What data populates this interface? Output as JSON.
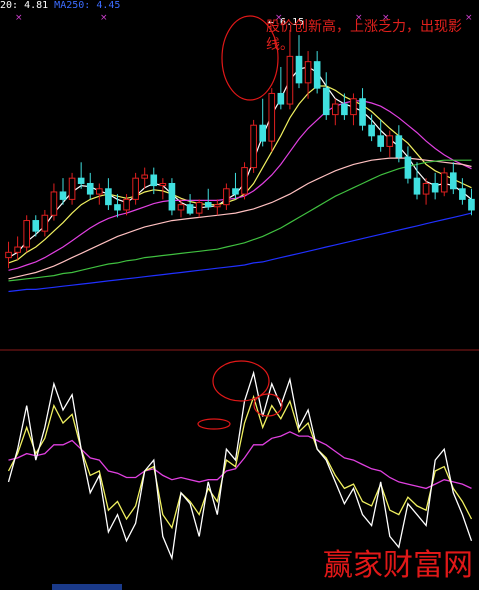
{
  "header": {
    "ma20_label": "20: 4.81",
    "ma250_label": "MA250: 4.45"
  },
  "annotation": {
    "text": "股价创新高，上涨乏力，出现影线。",
    "peak_label": "6.15"
  },
  "watermark": "赢家财富网",
  "colors": {
    "background": "#000000",
    "up_candle": "#e02020",
    "down_candle": "#40e0e0",
    "ma_white": "#ffffff",
    "ma_yellow": "#f0f060",
    "ma_magenta": "#e040e0",
    "ma_green": "#40c040",
    "ma_pink": "#ffc0c0",
    "ma_blue": "#2030ff",
    "circle": "#e01818"
  },
  "chart_data": [
    {
      "type": "candlestick",
      "title": "",
      "ylim": [
        3.6,
        6.3
      ],
      "candles": [
        [
          4.0,
          4.15,
          3.9,
          4.05
        ],
        [
          4.05,
          4.2,
          3.98,
          4.1
        ],
        [
          4.1,
          4.4,
          4.05,
          4.35
        ],
        [
          4.35,
          4.4,
          4.2,
          4.25
        ],
        [
          4.25,
          4.45,
          4.2,
          4.4
        ],
        [
          4.4,
          4.7,
          4.35,
          4.62
        ],
        [
          4.62,
          4.75,
          4.5,
          4.55
        ],
        [
          4.55,
          4.8,
          4.5,
          4.75
        ],
        [
          4.75,
          4.9,
          4.65,
          4.7
        ],
        [
          4.7,
          4.8,
          4.55,
          4.6
        ],
        [
          4.6,
          4.7,
          4.5,
          4.65
        ],
        [
          4.65,
          4.75,
          4.45,
          4.5
        ],
        [
          4.5,
          4.6,
          4.38,
          4.45
        ],
        [
          4.45,
          4.6,
          4.4,
          4.55
        ],
        [
          4.55,
          4.8,
          4.5,
          4.75
        ],
        [
          4.75,
          4.85,
          4.65,
          4.78
        ],
        [
          4.78,
          4.85,
          4.6,
          4.68
        ],
        [
          4.68,
          4.75,
          4.55,
          4.7
        ],
        [
          4.7,
          4.75,
          4.4,
          4.45
        ],
        [
          4.45,
          4.55,
          4.38,
          4.5
        ],
        [
          4.5,
          4.6,
          4.4,
          4.42
        ],
        [
          4.42,
          4.55,
          4.38,
          4.52
        ],
        [
          4.52,
          4.65,
          4.45,
          4.48
        ],
        [
          4.48,
          4.55,
          4.4,
          4.5
        ],
        [
          4.5,
          4.7,
          4.45,
          4.65
        ],
        [
          4.65,
          4.8,
          4.55,
          4.6
        ],
        [
          4.6,
          4.9,
          4.55,
          4.85
        ],
        [
          4.85,
          5.3,
          4.8,
          5.25
        ],
        [
          5.25,
          5.5,
          5.05,
          5.1
        ],
        [
          5.1,
          5.6,
          5.0,
          5.55
        ],
        [
          5.55,
          5.8,
          5.4,
          5.45
        ],
        [
          5.45,
          6.15,
          5.4,
          5.9
        ],
        [
          5.9,
          6.1,
          5.6,
          5.65
        ],
        [
          5.65,
          5.95,
          5.5,
          5.85
        ],
        [
          5.85,
          5.95,
          5.55,
          5.6
        ],
        [
          5.6,
          5.75,
          5.3,
          5.35
        ],
        [
          5.35,
          5.5,
          5.25,
          5.45
        ],
        [
          5.45,
          5.55,
          5.3,
          5.35
        ],
        [
          5.35,
          5.55,
          5.25,
          5.5
        ],
        [
          5.5,
          5.6,
          5.2,
          5.25
        ],
        [
          5.25,
          5.35,
          5.1,
          5.15
        ],
        [
          5.15,
          5.3,
          5.0,
          5.05
        ],
        [
          5.05,
          5.2,
          4.95,
          5.15
        ],
        [
          5.15,
          5.25,
          4.9,
          4.95
        ],
        [
          4.95,
          5.05,
          4.7,
          4.75
        ],
        [
          4.75,
          4.9,
          4.55,
          4.6
        ],
        [
          4.6,
          4.75,
          4.5,
          4.7
        ],
        [
          4.7,
          4.8,
          4.55,
          4.62
        ],
        [
          4.62,
          4.85,
          4.58,
          4.8
        ],
        [
          4.8,
          4.9,
          4.6,
          4.65
        ],
        [
          4.65,
          4.75,
          4.5,
          4.55
        ],
        [
          4.55,
          4.65,
          4.4,
          4.45
        ]
      ],
      "ma_lines": [
        {
          "color_key": "ma_white",
          "values": [
            4.0,
            4.05,
            4.15,
            4.22,
            4.3,
            4.42,
            4.52,
            4.62,
            4.68,
            4.67,
            4.63,
            4.6,
            4.55,
            4.52,
            4.58,
            4.66,
            4.7,
            4.68,
            4.6,
            4.52,
            4.48,
            4.47,
            4.48,
            4.49,
            4.55,
            4.6,
            4.7,
            4.92,
            5.15,
            5.35,
            5.5,
            5.68,
            5.78,
            5.8,
            5.75,
            5.62,
            5.5,
            5.45,
            5.42,
            5.38,
            5.3,
            5.2,
            5.12,
            5.05,
            4.95,
            4.82,
            4.72,
            4.68,
            4.7,
            4.68,
            4.62,
            4.55
          ]
        },
        {
          "color_key": "ma_yellow",
          "values": [
            3.95,
            3.98,
            4.05,
            4.1,
            4.17,
            4.25,
            4.33,
            4.42,
            4.5,
            4.55,
            4.58,
            4.6,
            4.58,
            4.56,
            4.58,
            4.62,
            4.64,
            4.63,
            4.6,
            4.56,
            4.53,
            4.51,
            4.5,
            4.5,
            4.52,
            4.55,
            4.6,
            4.7,
            4.85,
            5.0,
            5.15,
            5.32,
            5.45,
            5.55,
            5.62,
            5.62,
            5.58,
            5.52,
            5.48,
            5.44,
            5.38,
            5.3,
            5.22,
            5.15,
            5.08,
            4.98,
            4.88,
            4.82,
            4.78,
            4.74,
            4.7,
            4.66
          ]
        },
        {
          "color_key": "ma_magenta",
          "values": [
            3.88,
            3.9,
            3.93,
            3.96,
            4.0,
            4.05,
            4.1,
            4.16,
            4.22,
            4.28,
            4.33,
            4.37,
            4.4,
            4.42,
            4.45,
            4.48,
            4.51,
            4.53,
            4.54,
            4.54,
            4.54,
            4.54,
            4.54,
            4.54,
            4.55,
            4.56,
            4.58,
            4.63,
            4.7,
            4.78,
            4.88,
            5.0,
            5.12,
            5.22,
            5.3,
            5.38,
            5.43,
            5.46,
            5.48,
            5.48,
            5.46,
            5.43,
            5.38,
            5.32,
            5.25,
            5.18,
            5.1,
            5.03,
            4.97,
            4.92,
            4.88,
            4.84
          ]
        },
        {
          "color_key": "ma_pink",
          "values": [
            3.8,
            3.82,
            3.84,
            3.86,
            3.89,
            3.92,
            3.96,
            4.0,
            4.04,
            4.08,
            4.12,
            4.16,
            4.2,
            4.23,
            4.26,
            4.29,
            4.31,
            4.33,
            4.35,
            4.36,
            4.37,
            4.38,
            4.39,
            4.4,
            4.41,
            4.42,
            4.44,
            4.46,
            4.49,
            4.52,
            4.56,
            4.6,
            4.65,
            4.7,
            4.74,
            4.78,
            4.82,
            4.85,
            4.88,
            4.9,
            4.92,
            4.93,
            4.94,
            4.94,
            4.94,
            4.93,
            4.92,
            4.91,
            4.9,
            4.89,
            4.88,
            4.86
          ]
        },
        {
          "color_key": "ma_green",
          "values": [
            3.78,
            3.79,
            3.8,
            3.81,
            3.82,
            3.83,
            3.85,
            3.86,
            3.88,
            3.9,
            3.92,
            3.94,
            3.95,
            3.97,
            3.98,
            4.0,
            4.01,
            4.02,
            4.03,
            4.04,
            4.05,
            4.06,
            4.07,
            4.08,
            4.1,
            4.12,
            4.14,
            4.17,
            4.2,
            4.24,
            4.28,
            4.33,
            4.38,
            4.43,
            4.48,
            4.53,
            4.58,
            4.62,
            4.66,
            4.7,
            4.74,
            4.78,
            4.81,
            4.84,
            4.86,
            4.88,
            4.9,
            4.91,
            4.92,
            4.92,
            4.92,
            4.92
          ]
        },
        {
          "color_key": "ma_blue",
          "values": [
            3.68,
            3.69,
            3.7,
            3.7,
            3.71,
            3.72,
            3.73,
            3.74,
            3.75,
            3.76,
            3.77,
            3.78,
            3.79,
            3.8,
            3.81,
            3.82,
            3.83,
            3.84,
            3.85,
            3.86,
            3.87,
            3.88,
            3.89,
            3.9,
            3.91,
            3.92,
            3.93,
            3.95,
            3.96,
            3.98,
            4.0,
            4.02,
            4.04,
            4.06,
            4.08,
            4.1,
            4.12,
            4.14,
            4.16,
            4.18,
            4.2,
            4.22,
            4.24,
            4.26,
            4.28,
            4.3,
            4.32,
            4.34,
            4.36,
            4.38,
            4.4,
            4.42
          ]
        }
      ]
    },
    {
      "type": "line",
      "title": "",
      "ylim": [
        0,
        100
      ],
      "series": [
        {
          "color_key": "ma_white",
          "values": [
            45,
            60,
            80,
            55,
            70,
            90,
            78,
            85,
            60,
            40,
            48,
            22,
            30,
            18,
            26,
            50,
            55,
            20,
            10,
            40,
            35,
            20,
            45,
            30,
            60,
            55,
            82,
            95,
            75,
            90,
            80,
            92,
            70,
            78,
            60,
            55,
            45,
            35,
            42,
            30,
            25,
            45,
            20,
            15,
            35,
            30,
            25,
            55,
            60,
            40,
            30,
            18
          ]
        },
        {
          "color_key": "ma_yellow",
          "values": [
            50,
            58,
            70,
            58,
            65,
            80,
            72,
            76,
            60,
            48,
            50,
            32,
            36,
            28,
            34,
            50,
            52,
            30,
            24,
            40,
            36,
            30,
            42,
            36,
            55,
            52,
            72,
            84,
            70,
            80,
            74,
            82,
            68,
            72,
            60,
            56,
            48,
            42,
            44,
            36,
            34,
            44,
            32,
            30,
            38,
            34,
            32,
            50,
            52,
            42,
            36,
            28
          ]
        },
        {
          "color_key": "ma_magenta",
          "values": [
            55,
            56,
            58,
            57,
            58,
            62,
            62,
            64,
            60,
            56,
            55,
            50,
            49,
            47,
            47,
            50,
            51,
            48,
            46,
            47,
            46,
            45,
            46,
            46,
            50,
            51,
            56,
            62,
            62,
            65,
            66,
            68,
            66,
            66,
            64,
            62,
            59,
            56,
            55,
            53,
            51,
            50,
            47,
            45,
            44,
            43,
            42,
            44,
            46,
            45,
            44,
            42
          ]
        }
      ]
    }
  ]
}
